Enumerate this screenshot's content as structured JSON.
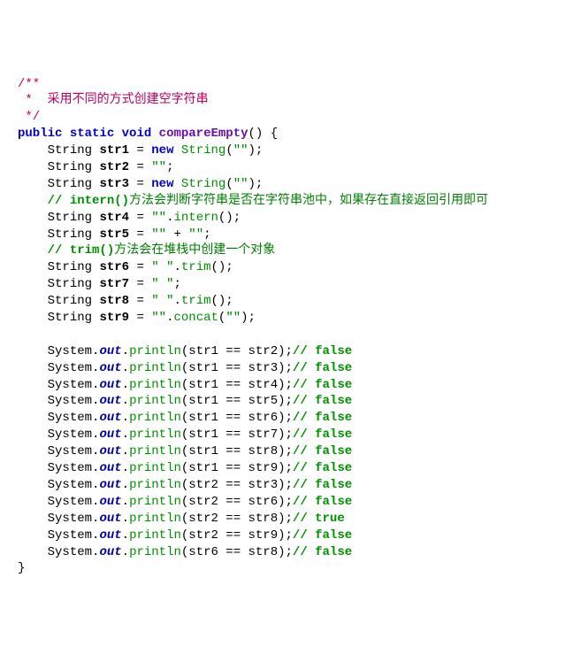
{
  "doc": {
    "l1": "/**",
    "l2": " *  采用不同的方式创建空字符串",
    "l3": " */"
  },
  "sig": {
    "public": "public",
    "static": "static",
    "void": "void",
    "name": "compareEmpty",
    "open": "() {"
  },
  "decl": {
    "String": "String",
    "new": "new",
    "eq": " = ",
    "str1": "str1",
    "str2": "str2",
    "str3": "str3",
    "str4": "str4",
    "str5": "str5",
    "str6": "str6",
    "str7": "str7",
    "str8": "str8",
    "str9": "str9",
    "newString": "String",
    "emptyQ": "\"\"",
    "spaceQ": "\" \"",
    "plus": " + ",
    "intern": "intern",
    "trim": "trim",
    "concat": "concat"
  },
  "comments": {
    "c1a": "// intern()",
    "c1b": "方法会判断字符串是否在字符串池中，如果存在直接返回引用即可",
    "c2a": "// trim()",
    "c2b": "方法会在堆栈中创建一个对象"
  },
  "out": {
    "System": "System",
    "dot": ".",
    "outf": "out",
    "println": "println",
    "eqeq": " == ",
    "false": "// false",
    "true": "// true"
  },
  "prints": {
    "p1a": "str1",
    "p1b": "str2",
    "p1c": "// false",
    "p2a": "str1",
    "p2b": "str3",
    "p2c": "// false",
    "p3a": "str1",
    "p3b": "str4",
    "p3c": "// false",
    "p4a": "str1",
    "p4b": "str5",
    "p4c": "// false",
    "p5a": "str1",
    "p5b": "str6",
    "p5c": "// false",
    "p6a": "str1",
    "p6b": "str7",
    "p6c": "// false",
    "p7a": "str1",
    "p7b": "str8",
    "p7c": "// false",
    "p8a": "str1",
    "p8b": "str9",
    "p8c": "// false",
    "p9a": "str2",
    "p9b": "str3",
    "p9c": "// false",
    "p10a": "str2",
    "p10b": "str6",
    "p10c": "// false",
    "p11a": "str2",
    "p11b": "str8",
    "p11c": "// true",
    "p12a": "str2",
    "p12b": "str9",
    "p12c": "// false",
    "p13a": "str6",
    "p13b": "str8",
    "p13c": "// false"
  },
  "close": "}"
}
